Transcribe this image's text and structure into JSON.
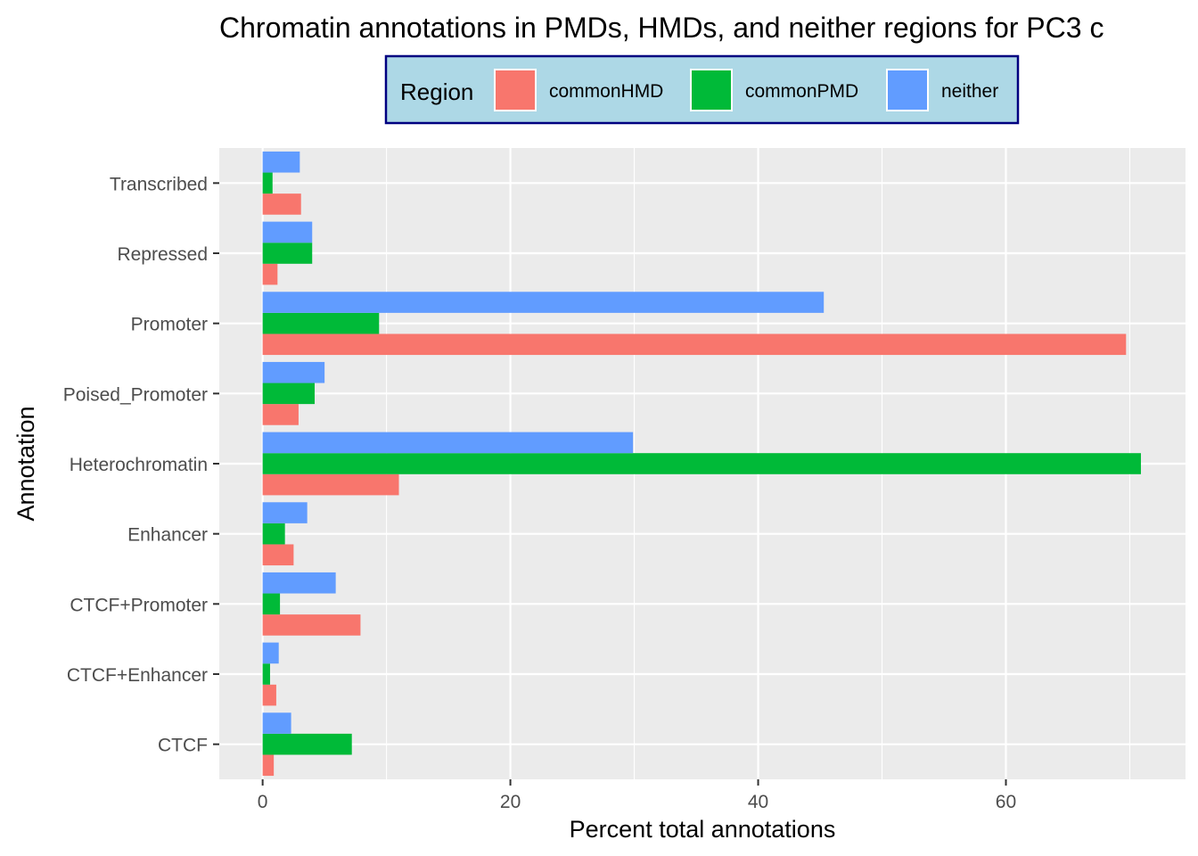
{
  "chart_data": {
    "type": "bar",
    "orientation": "horizontal",
    "title": "Chromatin annotations in PMDs, HMDs, and neither regions for PC3 c",
    "xlabel": "Percent total annotations",
    "ylabel": "Annotation",
    "xlim": [
      -3.5,
      74.5
    ],
    "x_ticks": [
      0,
      20,
      40,
      60
    ],
    "grid": true,
    "legend": {
      "title": "Region",
      "placement": "top",
      "background": "#ADD8E6",
      "border": "#000080"
    },
    "categories": [
      "Transcribed",
      "Repressed",
      "Promoter",
      "Poised_Promoter",
      "Heterochromatin",
      "Enhancer",
      "CTCF+Promoter",
      "CTCF+Enhancer",
      "CTCF"
    ],
    "series": [
      {
        "name": "commonHMD",
        "color": "#F8766D",
        "values": [
          3.1,
          1.2,
          69.7,
          2.9,
          11.0,
          2.5,
          7.9,
          1.1,
          0.9
        ]
      },
      {
        "name": "commonPMD",
        "color": "#00BA38",
        "values": [
          0.8,
          4.0,
          9.4,
          4.2,
          70.9,
          1.8,
          1.4,
          0.6,
          7.2
        ]
      },
      {
        "name": "neither",
        "color": "#619CFF",
        "values": [
          3.0,
          4.0,
          45.3,
          5.0,
          29.9,
          3.6,
          5.9,
          1.3,
          2.3
        ]
      }
    ]
  }
}
